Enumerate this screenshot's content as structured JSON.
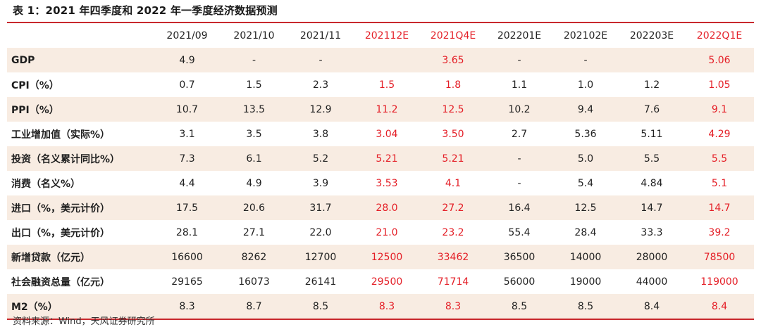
{
  "caption": "表 1：2021 年四季度和 2022 年一季度经济数据预测",
  "source": "资料来源：Wind，天风证券研究所",
  "highlight_color": "#e41e26",
  "columns": [
    {
      "label": "",
      "red": false
    },
    {
      "label": "2021/09",
      "red": false
    },
    {
      "label": "2021/10",
      "red": false
    },
    {
      "label": "2021/11",
      "red": false
    },
    {
      "label": "202112E",
      "red": true
    },
    {
      "label": "2021Q4E",
      "red": true
    },
    {
      "label": "202201E",
      "red": false
    },
    {
      "label": "202102E",
      "red": false
    },
    {
      "label": "202203E",
      "red": false
    },
    {
      "label": "2022Q1E",
      "red": true
    }
  ],
  "rows": [
    {
      "label": "GDP",
      "cells": [
        "4.9",
        "-",
        "-",
        "",
        "3.65",
        "-",
        "-",
        "",
        "5.06"
      ]
    },
    {
      "label": "CPI（%）",
      "cells": [
        "0.7",
        "1.5",
        "2.3",
        "1.5",
        "1.8",
        "1.1",
        "1.0",
        "1.2",
        "1.05"
      ]
    },
    {
      "label": "PPI（%）",
      "cells": [
        "10.7",
        "13.5",
        "12.9",
        "11.2",
        "12.5",
        "10.2",
        "9.4",
        "7.6",
        "9.1"
      ]
    },
    {
      "label": "工业增加值（实际%）",
      "cells": [
        "3.1",
        "3.5",
        "3.8",
        "3.04",
        "3.50",
        "2.7",
        "5.36",
        "5.11",
        "4.29"
      ]
    },
    {
      "label": "投资（名义累计同比%）",
      "cells": [
        "7.3",
        "6.1",
        "5.2",
        "5.21",
        "5.21",
        "-",
        "5.0",
        "5.5",
        "5.5"
      ]
    },
    {
      "label": "消费（名义%）",
      "cells": [
        "4.4",
        "4.9",
        "3.9",
        "3.53",
        "4.1",
        "-",
        "5.4",
        "4.84",
        "5.1"
      ]
    },
    {
      "label": "进口（%，美元计价）",
      "cells": [
        "17.5",
        "20.6",
        "31.7",
        "28.0",
        "27.2",
        "16.4",
        "12.5",
        "14.7",
        "14.7"
      ]
    },
    {
      "label": "出口（%，美元计价）",
      "cells": [
        "28.1",
        "27.1",
        "22.0",
        "21.0",
        "23.2",
        "55.4",
        "28.4",
        "33.3",
        "39.2"
      ]
    },
    {
      "label": "新增贷款（亿元）",
      "cells": [
        "16600",
        "8262",
        "12700",
        "12500",
        "33462",
        "36500",
        "14000",
        "28000",
        "78500"
      ]
    },
    {
      "label": "社会融资总量（亿元）",
      "cells": [
        "29165",
        "16073",
        "26141",
        "29500",
        "71714",
        "56000",
        "19000",
        "44000",
        "119000"
      ]
    },
    {
      "label": "M2（%）",
      "cells": [
        "8.3",
        "8.7",
        "8.5",
        "8.3",
        "8.3",
        "8.5",
        "8.5",
        "8.4",
        "8.4"
      ]
    }
  ]
}
